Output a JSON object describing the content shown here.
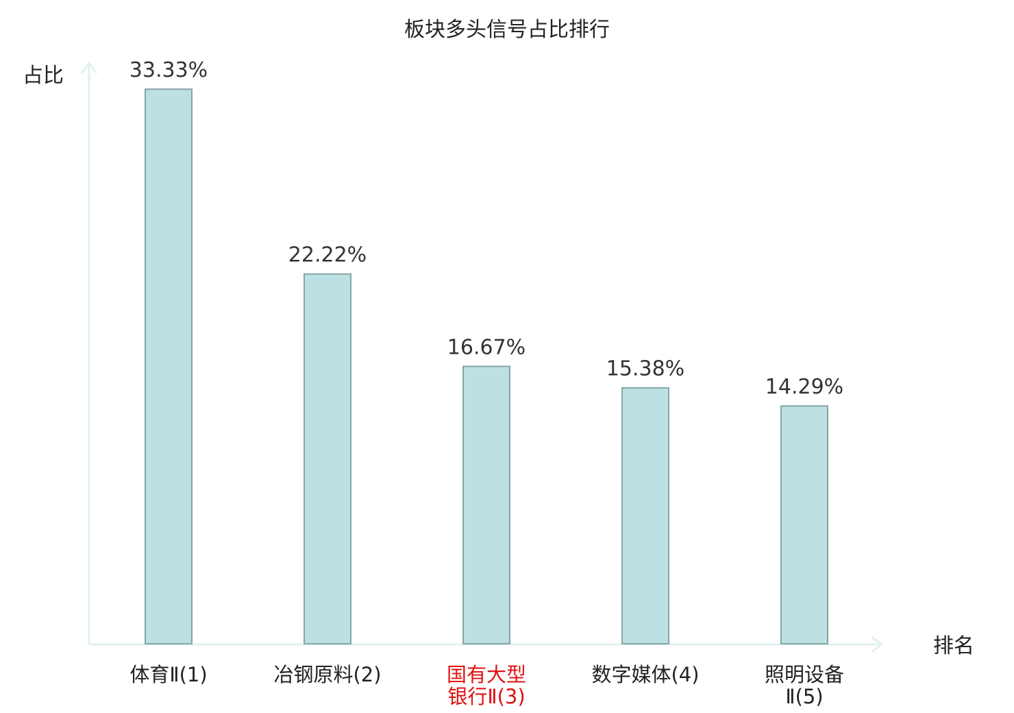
{
  "chart_data": {
    "type": "bar",
    "title": "板块多头信号占比排行",
    "ylabel": "占比",
    "xlabel": "排名",
    "ylim": [
      0,
      35
    ],
    "grid": false,
    "categories": [
      {
        "lines": [
          "体育Ⅱ(1)"
        ],
        "highlight": false
      },
      {
        "lines": [
          "冶钢原料(2)"
        ],
        "highlight": false
      },
      {
        "lines": [
          "国有大型",
          "银行Ⅱ(3)"
        ],
        "highlight": true
      },
      {
        "lines": [
          "数字媒体(4)"
        ],
        "highlight": false
      },
      {
        "lines": [
          "照明设备",
          "Ⅱ(5)"
        ],
        "highlight": false
      }
    ],
    "values": [
      33.33,
      22.22,
      16.67,
      15.38,
      14.29
    ],
    "value_labels": [
      "33.33%",
      "22.22%",
      "16.67%",
      "15.38%",
      "14.29%"
    ],
    "colors": {
      "bar_fill": "#bde0e2",
      "bar_stroke": "#86a5a8",
      "axis": "#e0f2ef",
      "text": "#222222",
      "highlight_text": "#e01010"
    }
  }
}
